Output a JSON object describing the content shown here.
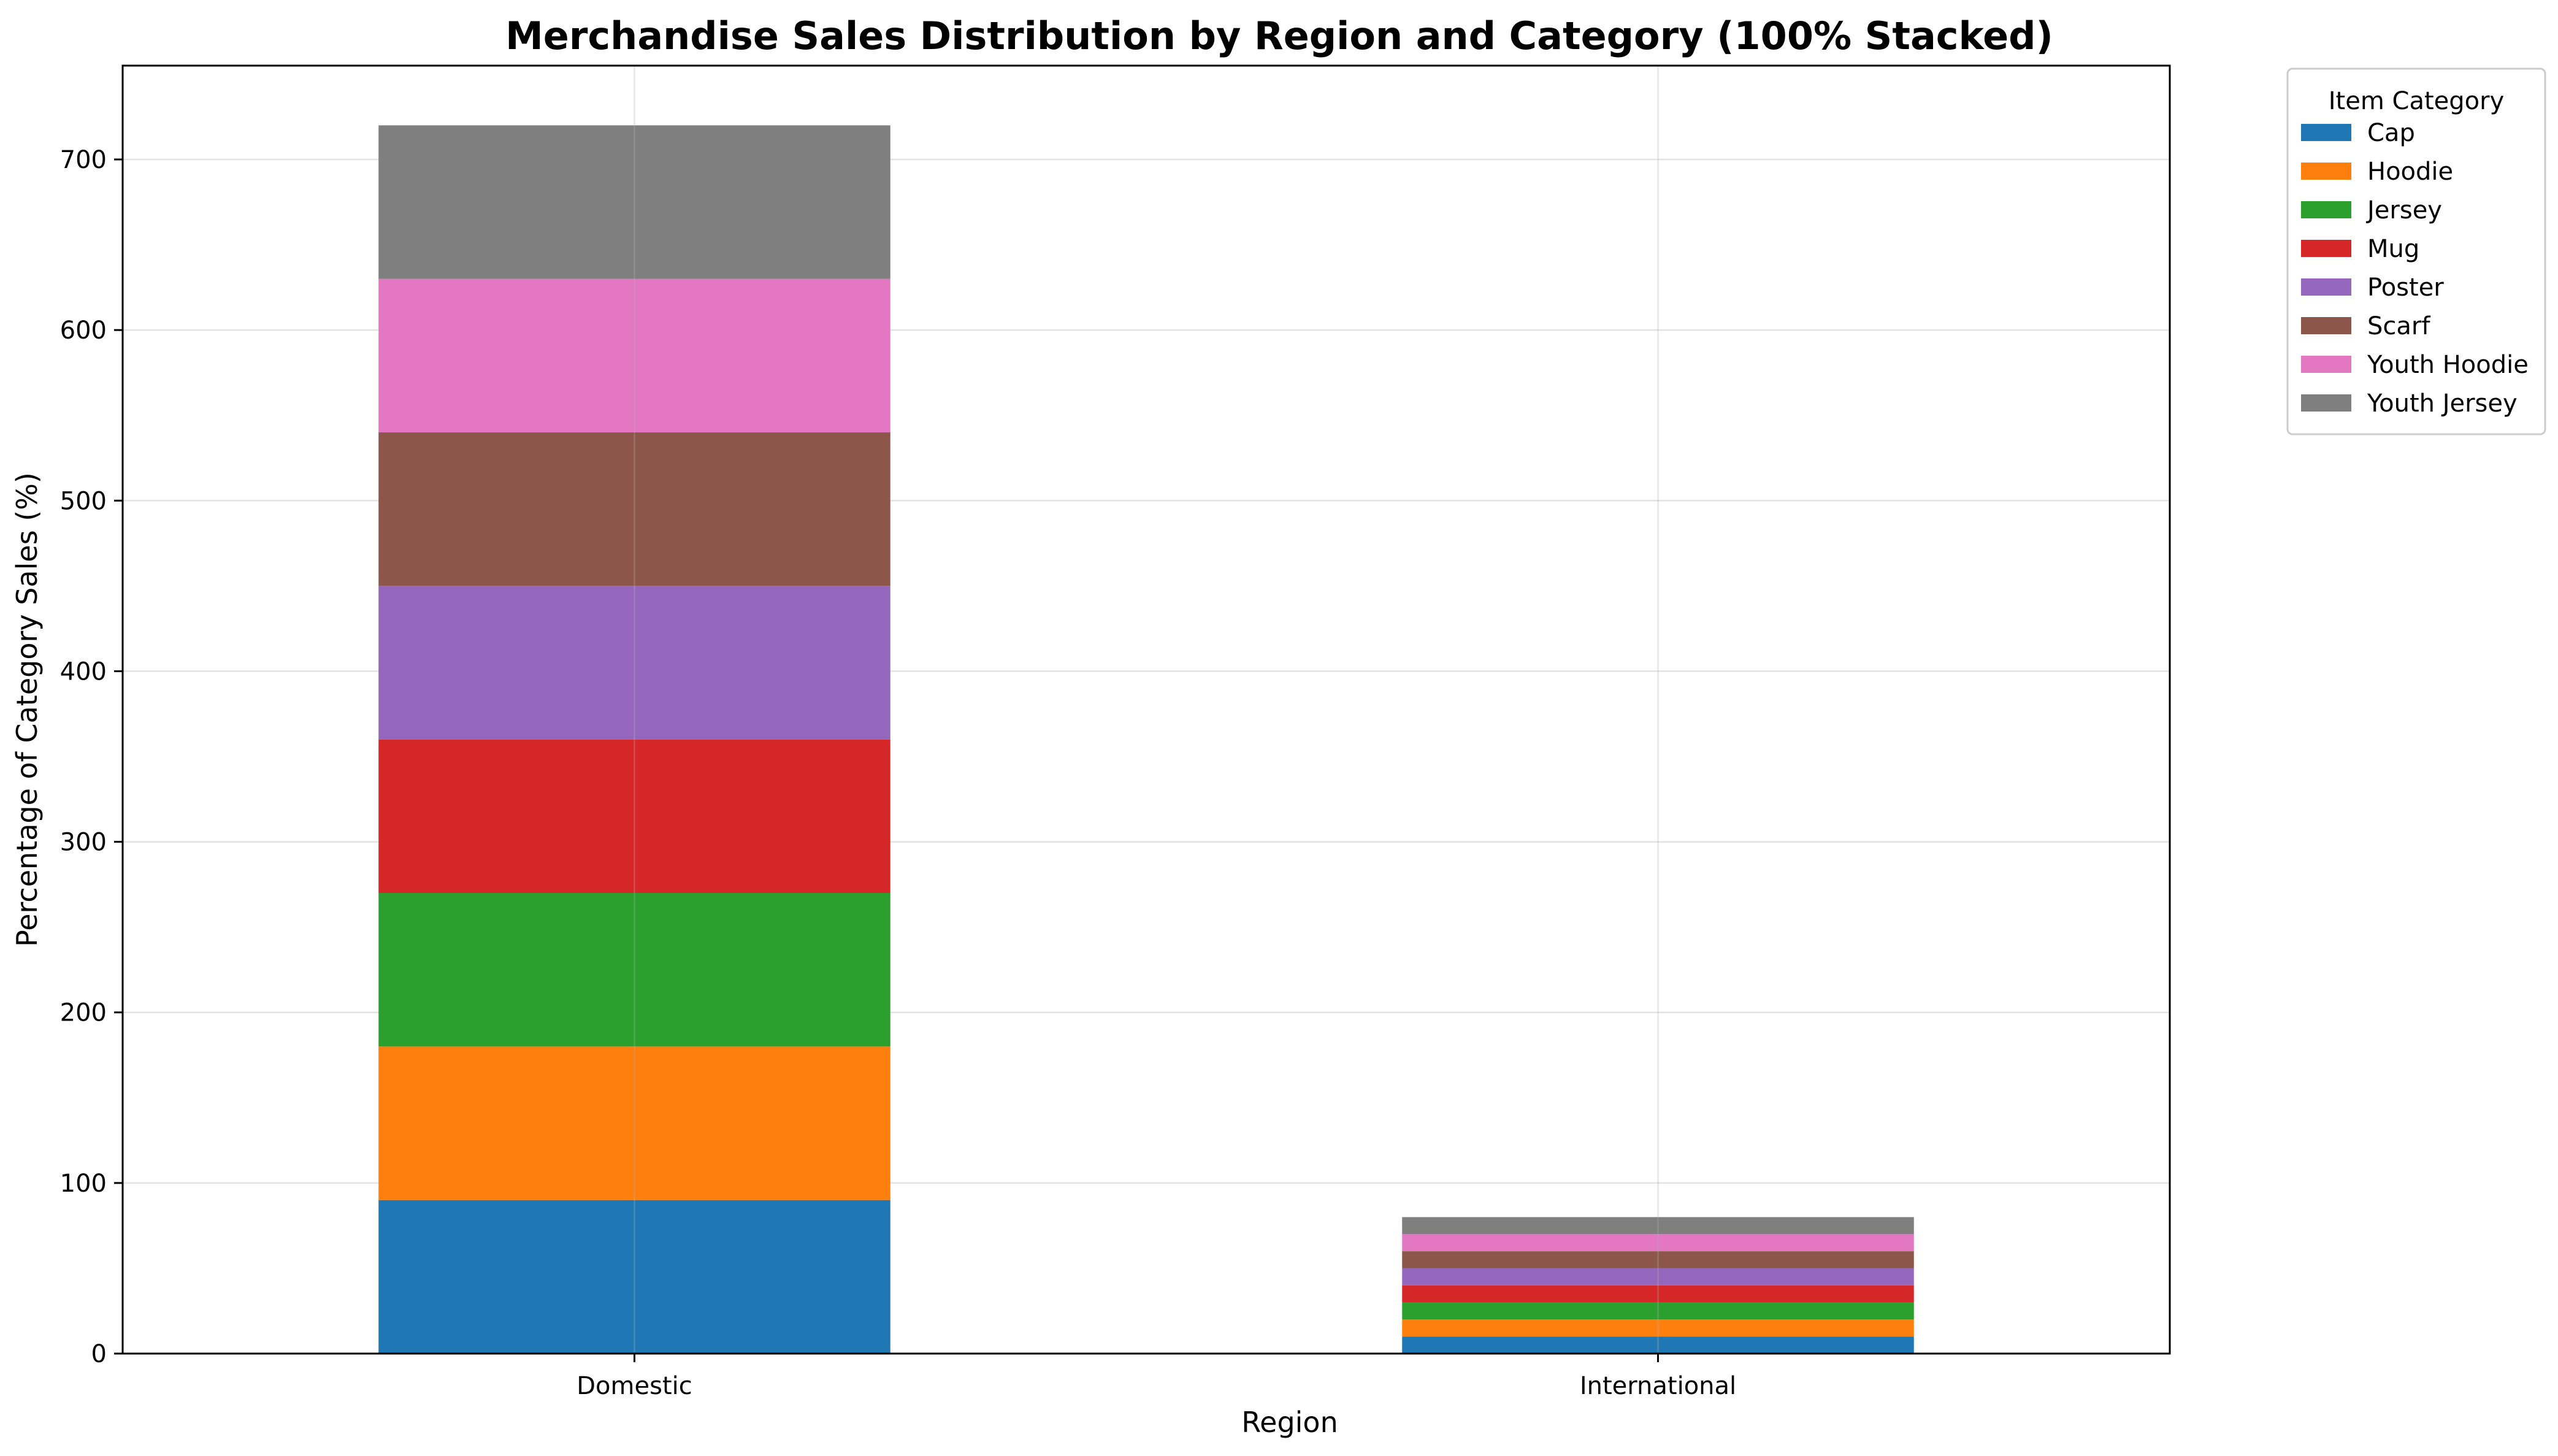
{
  "chart_data": {
    "type": "bar",
    "stacked": true,
    "title": "Merchandise Sales Distribution by Region and Category (100% Stacked)",
    "xlabel": "Region",
    "ylabel": "Percentage of Category Sales (%)",
    "categories": [
      "Domestic",
      "International"
    ],
    "ylim": [
      0,
      755
    ],
    "yticks": [
      0,
      100,
      200,
      300,
      400,
      500,
      600,
      700
    ],
    "grid": true,
    "legend": {
      "title": "Item Category",
      "placement": "outside-right-top"
    },
    "series": [
      {
        "name": "Cap",
        "color": "#1f77b4",
        "values": [
          90,
          10
        ]
      },
      {
        "name": "Hoodie",
        "color": "#ff7f0e",
        "values": [
          90,
          10
        ]
      },
      {
        "name": "Jersey",
        "color": "#2ca02c",
        "values": [
          90,
          10
        ]
      },
      {
        "name": "Mug",
        "color": "#d62728",
        "values": [
          90,
          10
        ]
      },
      {
        "name": "Poster",
        "color": "#9467bd",
        "values": [
          90,
          10
        ]
      },
      {
        "name": "Scarf",
        "color": "#8c564b",
        "values": [
          90,
          10
        ]
      },
      {
        "name": "Youth Hoodie",
        "color": "#e377c2",
        "values": [
          90,
          10
        ]
      },
      {
        "name": "Youth Jersey",
        "color": "#7f7f7f",
        "values": [
          90,
          10
        ]
      }
    ]
  }
}
